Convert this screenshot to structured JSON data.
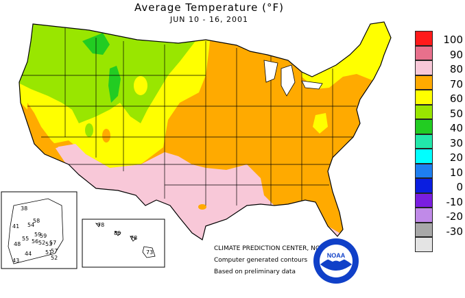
{
  "title": "Average Temperature (°F)",
  "subtitle": "JUN 10 - 16, 2001",
  "legend": [
    {
      "value": "100",
      "color": "#ff1a1a"
    },
    {
      "value": "90",
      "color": "#e8708c"
    },
    {
      "value": "80",
      "color": "#f8c8d8"
    },
    {
      "value": "70",
      "color": "#ffaa00"
    },
    {
      "value": "60",
      "color": "#ffff00"
    },
    {
      "value": "50",
      "color": "#99e600"
    },
    {
      "value": "40",
      "color": "#22cc22"
    },
    {
      "value": "30",
      "color": "#22e8aa"
    },
    {
      "value": "20",
      "color": "#00ffff"
    },
    {
      "value": "10",
      "color": "#1e7ff0"
    },
    {
      "value": "0",
      "color": "#0a1ee0"
    },
    {
      "value": "-10",
      "color": "#7a1ee0"
    },
    {
      "value": "-20",
      "color": "#c08ae8"
    },
    {
      "value": "-30",
      "color": "#a8a8a8"
    },
    {
      "value": "",
      "color": "#e4e4e4"
    }
  ],
  "credits": {
    "center": "CLIMATE PREDICTION CENTER, NOAA",
    "line1": "Computer generated contours",
    "line2": "Based on preliminary data"
  },
  "logo_text": "NOAA",
  "alaska_values": [
    "38",
    "58",
    "41",
    "54",
    "59",
    "56",
    "52",
    "53",
    "59",
    "48",
    "55",
    "57",
    "57",
    "44",
    "43",
    "51",
    "52"
  ],
  "hawaii_values": [
    "78",
    "80",
    "78",
    "73"
  ],
  "colors": {
    "land_outline": "#000000",
    "lake": "#ffffff"
  }
}
